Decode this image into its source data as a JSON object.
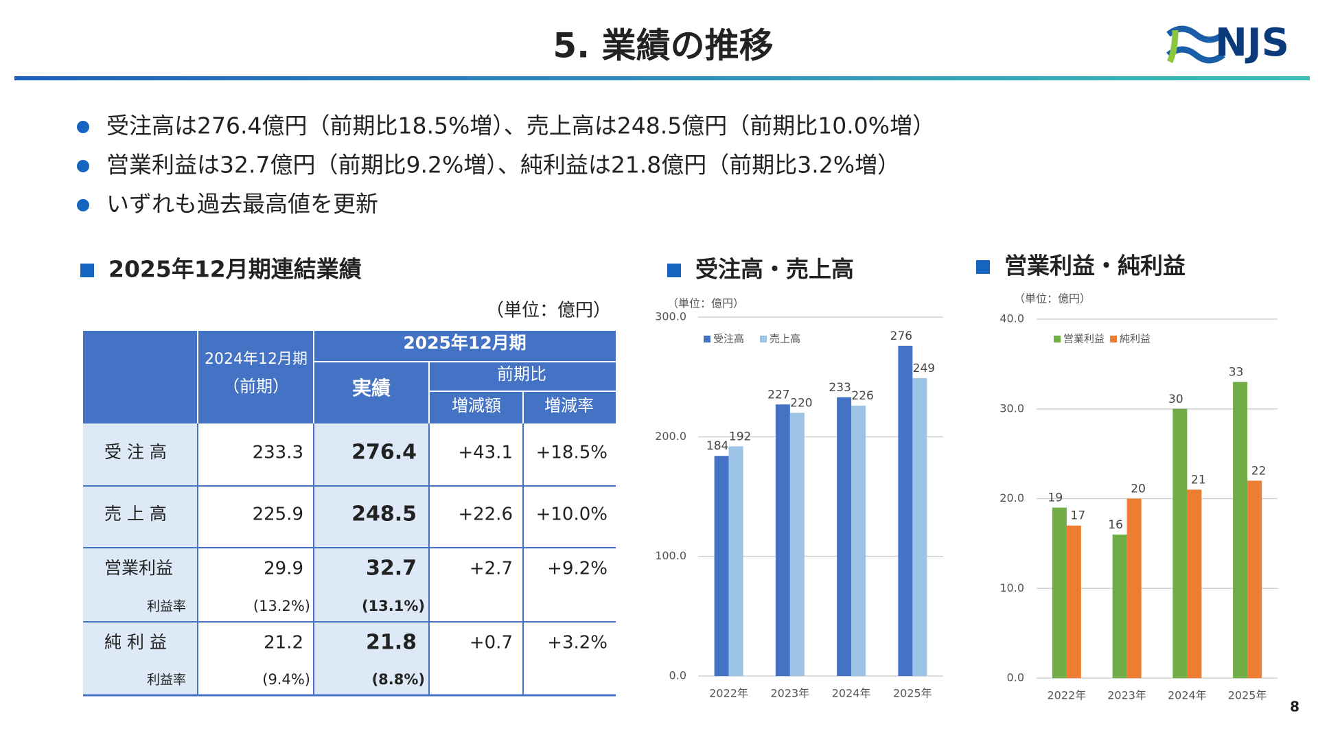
{
  "header": {
    "title": "5. 業績の推移",
    "logo": "NJS",
    "page": "8"
  },
  "bullets": [
    "受注高は276.4億円（前期比18.5%増）、売上高は248.5億円（前期比10.0%増）",
    "営業利益は32.7億円（前期比9.2%増）、純利益は21.8億円（前期比3.2%増）",
    "いずれも過去最高値を更新"
  ],
  "sections": [
    "2025年12月期連結業績",
    "受注高・売上高",
    "営業利益・純利益"
  ],
  "table": {
    "unit": "（単位：億円）",
    "header": {
      "prev_period": "2024年12月期",
      "prev_note": "（前期）",
      "period": "2025年12月期",
      "actual": "実績",
      "change": "前期比",
      "diff": "増減額",
      "rate": "増減率"
    },
    "rows": [
      {
        "label": "受 注 高",
        "cells": [
          "233.3",
          "276.4",
          "+43.1",
          "+18.5%"
        ]
      },
      {
        "label": "売 上 高",
        "cells": [
          "225.9",
          "248.5",
          "+22.6",
          "+10.0%"
        ]
      },
      {
        "label": "営業利益",
        "cells": [
          "29.9",
          "32.7",
          "+2.7",
          "+9.2%"
        ],
        "margin": [
          "利益率",
          "(13.2%)",
          "(13.1%)"
        ]
      },
      {
        "label": "純 利 益",
        "cells": [
          "21.2",
          "21.8",
          "+0.7",
          "+3.2%"
        ],
        "margin": [
          "利益率",
          "(9.4%)",
          "(8.8%)"
        ]
      }
    ]
  },
  "chart_data": [
    {
      "type": "bar",
      "y_label": "（単位：億円）",
      "categories": [
        "2022年",
        "2023年",
        "2024年",
        "2025年"
      ],
      "series": [
        {
          "name": "受注高",
          "color": "#4472c4",
          "values": [
            184,
            227,
            233,
            276
          ]
        },
        {
          "name": "売上高",
          "color": "#9dc3e6",
          "values": [
            192,
            220,
            226,
            249
          ]
        }
      ],
      "ylim": [
        0,
        300
      ],
      "yticks": [
        {
          "value": 0,
          "label": "0.0"
        },
        {
          "value": 100,
          "label": "100.0"
        },
        {
          "value": 200,
          "label": "200.0"
        },
        {
          "value": 300,
          "label": "300.0"
        }
      ],
      "grid": true,
      "legend": "top-left"
    },
    {
      "type": "bar",
      "y_label": "（単位：億円）",
      "categories": [
        "2022年",
        "2023年",
        "2024年",
        "2025年"
      ],
      "series": [
        {
          "name": "営業利益",
          "color": "#70ad47",
          "values": [
            19,
            16,
            30,
            33
          ]
        },
        {
          "name": "純利益",
          "color": "#ed7d31",
          "values": [
            17,
            20,
            21,
            22
          ]
        }
      ],
      "ylim": [
        0,
        40
      ],
      "yticks": [
        {
          "value": 0,
          "label": "0.0"
        },
        {
          "value": 10,
          "label": "10.0"
        },
        {
          "value": 20,
          "label": "20.0"
        },
        {
          "value": 30,
          "label": "30.0"
        },
        {
          "value": 40,
          "label": "40.0"
        }
      ],
      "grid": true,
      "legend": "top-left"
    }
  ]
}
